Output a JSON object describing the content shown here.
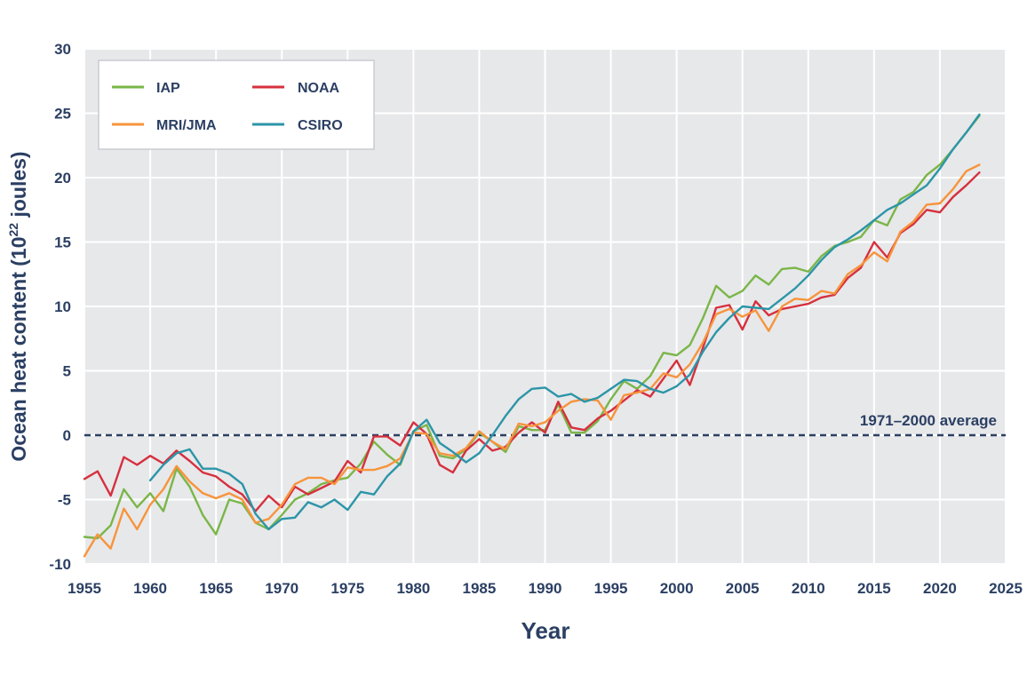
{
  "chart_data": {
    "type": "line",
    "ylabel": "Ocean heat content (10²² joules)",
    "ylabel_main": "Ocean heat content (10",
    "ylabel_exp": "22",
    "ylabel_end": " joules)",
    "xlabel": "Year",
    "xlim": [
      1955,
      2025
    ],
    "ylim": [
      -10,
      30
    ],
    "x_ticks": [
      1955,
      1960,
      1965,
      1970,
      1975,
      1980,
      1985,
      1990,
      1995,
      2000,
      2005,
      2010,
      2015,
      2020,
      2025
    ],
    "y_ticks": [
      -10,
      -5,
      0,
      5,
      10,
      15,
      20,
      25,
      30
    ],
    "grid": true,
    "legend_position": "top-left",
    "annotation": {
      "text": "1971–2000 average",
      "y": 0
    },
    "series": [
      {
        "name": "IAP",
        "color": "#7ab648",
        "x": [
          1955,
          1956,
          1957,
          1958,
          1959,
          1960,
          1961,
          1962,
          1963,
          1964,
          1965,
          1966,
          1967,
          1968,
          1969,
          1970,
          1971,
          1972,
          1973,
          1974,
          1975,
          1976,
          1977,
          1978,
          1979,
          1980,
          1981,
          1982,
          1983,
          1984,
          1985,
          1986,
          1987,
          1988,
          1989,
          1990,
          1991,
          1992,
          1993,
          1994,
          1995,
          1996,
          1997,
          1998,
          1999,
          2000,
          2001,
          2002,
          2003,
          2004,
          2005,
          2006,
          2007,
          2008,
          2009,
          2010,
          2011,
          2012,
          2013,
          2014,
          2015,
          2016,
          2017,
          2018,
          2019,
          2020,
          2021,
          2022,
          2023
        ],
        "y": [
          -7.9,
          -8.0,
          -7.0,
          -4.2,
          -5.6,
          -4.5,
          -5.9,
          -2.6,
          -4.0,
          -6.2,
          -7.7,
          -5.0,
          -5.3,
          -6.8,
          -7.3,
          -6.2,
          -5.0,
          -4.5,
          -3.8,
          -3.5,
          -3.3,
          -2.2,
          -0.5,
          -1.5,
          -2.3,
          0.3,
          0.8,
          -1.6,
          -1.8,
          -1.1,
          0.2,
          -0.5,
          -1.3,
          0.7,
          0.4,
          0.4,
          2.4,
          0.2,
          0.2,
          1.1,
          2.8,
          4.2,
          3.6,
          4.6,
          6.4,
          6.2,
          7.0,
          9.1,
          11.6,
          10.7,
          11.2,
          12.4,
          11.7,
          12.9,
          13.0,
          12.7,
          13.9,
          14.7,
          15.0,
          15.4,
          16.7,
          16.3,
          18.3,
          18.9,
          20.2,
          21.0,
          22.2,
          23.5,
          24.8
        ]
      },
      {
        "name": "NOAA",
        "color": "#d6303e",
        "x": [
          1955,
          1956,
          1957,
          1958,
          1959,
          1960,
          1961,
          1962,
          1963,
          1964,
          1965,
          1966,
          1967,
          1968,
          1969,
          1970,
          1971,
          1972,
          1973,
          1974,
          1975,
          1976,
          1977,
          1978,
          1979,
          1980,
          1981,
          1982,
          1983,
          1984,
          1985,
          1986,
          1987,
          1988,
          1989,
          1990,
          1991,
          1992,
          1993,
          1994,
          1995,
          1996,
          1997,
          1998,
          1999,
          2000,
          2001,
          2002,
          2003,
          2004,
          2005,
          2006,
          2007,
          2008,
          2009,
          2010,
          2011,
          2012,
          2013,
          2014,
          2015,
          2016,
          2017,
          2018,
          2019,
          2020,
          2021,
          2022,
          2023
        ],
        "y": [
          -3.4,
          -2.8,
          -4.7,
          -1.7,
          -2.3,
          -1.6,
          -2.2,
          -1.2,
          -2.0,
          -2.9,
          -3.2,
          -4.0,
          -4.6,
          -5.9,
          -4.7,
          -5.6,
          -4.0,
          -4.6,
          -4.1,
          -3.6,
          -2.0,
          -2.9,
          -0.1,
          -0.1,
          -0.8,
          1.0,
          0.1,
          -2.3,
          -2.9,
          -1.2,
          -0.3,
          -1.2,
          -0.9,
          0.2,
          1.0,
          0.2,
          2.6,
          0.6,
          0.4,
          1.3,
          1.9,
          2.7,
          3.5,
          3.0,
          4.4,
          5.8,
          3.9,
          6.8,
          9.9,
          10.1,
          8.2,
          10.4,
          9.3,
          9.8,
          10.0,
          10.2,
          10.7,
          10.9,
          12.2,
          13.0,
          15.0,
          13.8,
          15.7,
          16.4,
          17.5,
          17.3,
          18.5,
          19.4,
          20.4
        ]
      },
      {
        "name": "MRI/JMA",
        "color": "#f7943c",
        "x": [
          1955,
          1956,
          1957,
          1958,
          1959,
          1960,
          1961,
          1962,
          1963,
          1964,
          1965,
          1966,
          1967,
          1968,
          1969,
          1970,
          1971,
          1972,
          1973,
          1974,
          1975,
          1976,
          1977,
          1978,
          1979,
          1980,
          1981,
          1982,
          1983,
          1984,
          1985,
          1986,
          1987,
          1988,
          1989,
          1990,
          1991,
          1992,
          1993,
          1994,
          1995,
          1996,
          1997,
          1998,
          1999,
          2000,
          2001,
          2002,
          2003,
          2004,
          2005,
          2006,
          2007,
          2008,
          2009,
          2010,
          2011,
          2012,
          2013,
          2014,
          2015,
          2016,
          2017,
          2018,
          2019,
          2020,
          2021,
          2022,
          2023
        ],
        "y": [
          -9.4,
          -7.7,
          -8.8,
          -5.7,
          -7.3,
          -5.4,
          -4.2,
          -2.4,
          -3.6,
          -4.5,
          -4.9,
          -4.5,
          -5.0,
          -6.8,
          -6.5,
          -5.4,
          -3.8,
          -3.3,
          -3.3,
          -3.8,
          -2.5,
          -2.7,
          -2.7,
          -2.4,
          -1.8,
          0.2,
          0.1,
          -1.4,
          -1.6,
          -1.0,
          0.3,
          -0.5,
          -1.1,
          0.9,
          0.7,
          1.0,
          1.9,
          2.6,
          2.8,
          2.7,
          1.2,
          3.1,
          3.3,
          3.6,
          4.8,
          4.5,
          5.5,
          7.2,
          9.4,
          9.8,
          9.2,
          9.7,
          8.1,
          10.0,
          10.6,
          10.5,
          11.2,
          11.0,
          12.5,
          13.2,
          14.2,
          13.5,
          15.8,
          16.6,
          17.9,
          18.0,
          19.1,
          20.5,
          21.0
        ]
      },
      {
        "name": "CSIRO",
        "color": "#2c95a8",
        "x": [
          1960,
          1961,
          1962,
          1963,
          1964,
          1965,
          1966,
          1967,
          1968,
          1969,
          1970,
          1971,
          1972,
          1973,
          1974,
          1975,
          1976,
          1977,
          1978,
          1979,
          1980,
          1981,
          1982,
          1983,
          1984,
          1985,
          1986,
          1987,
          1988,
          1989,
          1990,
          1991,
          1992,
          1993,
          1994,
          1995,
          1996,
          1997,
          1998,
          1999,
          2000,
          2001,
          2002,
          2003,
          2004,
          2005,
          2006,
          2007,
          2008,
          2009,
          2010,
          2011,
          2012,
          2013,
          2014,
          2015,
          2016,
          2017,
          2018,
          2019,
          2020,
          2021,
          2022,
          2023
        ],
        "y": [
          -3.5,
          -2.3,
          -1.4,
          -1.1,
          -2.6,
          -2.6,
          -3.0,
          -3.8,
          -6.1,
          -7.3,
          -6.5,
          -6.4,
          -5.2,
          -5.6,
          -5.0,
          -5.8,
          -4.4,
          -4.6,
          -3.2,
          -2.2,
          0.3,
          1.2,
          -0.6,
          -1.3,
          -2.1,
          -1.4,
          0.0,
          1.5,
          2.8,
          3.6,
          3.7,
          3.0,
          3.2,
          2.6,
          2.9,
          3.6,
          4.3,
          4.2,
          3.6,
          3.3,
          3.8,
          4.7,
          6.5,
          8.0,
          9.1,
          10.0,
          9.9,
          9.8,
          10.6,
          11.4,
          12.4,
          13.6,
          14.6,
          15.2,
          15.9,
          16.7,
          17.5,
          18.0,
          18.7,
          19.4,
          20.7,
          22.2,
          23.5,
          24.9
        ]
      }
    ]
  }
}
